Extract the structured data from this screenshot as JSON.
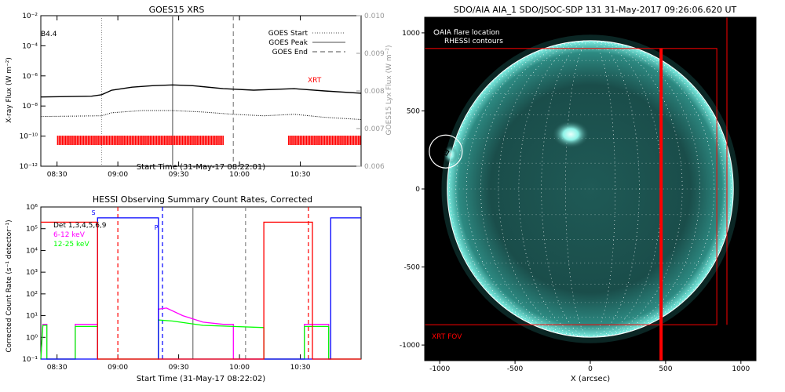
{
  "chart_data": [
    {
      "type": "line",
      "title": "GOES15 XRS",
      "xlabel": "Start Time (31-May-17 08:22:01)",
      "ylabel": "X-ray Flux (W m⁻²)",
      "ylabel_right": "GOES15 Lyx Flux (W m⁻²)",
      "class_label": "B4.4",
      "x_unit": "minutes after 08:22:01",
      "xlim": [
        0,
        158
      ],
      "ylim_log": [
        -12,
        -2
      ],
      "ylim_right": [
        0.006,
        0.01
      ],
      "x_tick_labels": [
        "08:30",
        "09:00",
        "09:30",
        "10:00",
        "10:30"
      ],
      "y_tick_labels": [
        "10⁻¹²",
        "10⁻¹⁰",
        "10⁻⁸",
        "10⁻⁶",
        "10⁻⁴",
        "10⁻²"
      ],
      "y_right_tick_labels": [
        "0.006",
        "0.007",
        "0.008",
        "0.009",
        "0.010"
      ],
      "legend": [
        {
          "label": "GOES Start",
          "style": "dotted"
        },
        {
          "label": "GOES Peak",
          "style": "solid"
        },
        {
          "label": "GOES End",
          "style": "dashed"
        }
      ],
      "event_lines": {
        "start": 30,
        "peak": 65,
        "end": 95
      },
      "series": [
        {
          "color": "#000000",
          "log_values": [
            [
              0,
              -7.4
            ],
            [
              25,
              -7.35
            ],
            [
              30,
              -7.25
            ],
            [
              35,
              -6.95
            ],
            [
              45,
              -6.75
            ],
            [
              55,
              -6.65
            ],
            [
              65,
              -6.6
            ],
            [
              75,
              -6.65
            ],
            [
              90,
              -6.85
            ],
            [
              105,
              -6.95
            ],
            [
              125,
              -6.85
            ],
            [
              140,
              -7.0
            ],
            [
              158,
              -7.15
            ]
          ]
        },
        {
          "color": "#000000",
          "style": "dotted",
          "log_values": [
            [
              0,
              -8.7
            ],
            [
              30,
              -8.65
            ],
            [
              35,
              -8.45
            ],
            [
              50,
              -8.3
            ],
            [
              65,
              -8.3
            ],
            [
              80,
              -8.4
            ],
            [
              95,
              -8.55
            ],
            [
              110,
              -8.65
            ],
            [
              125,
              -8.55
            ],
            [
              140,
              -8.75
            ],
            [
              158,
              -8.9
            ]
          ]
        }
      ],
      "xrt_label": "XRT",
      "xrt_color": "#ff0000",
      "xrt_intervals": [
        [
          8,
          90
        ],
        [
          122,
          158
        ]
      ]
    },
    {
      "type": "line",
      "title": "HESSI Observing Summary Count Rates, Corrected",
      "xlabel": "Start Time (31-May-17 08:22:02)",
      "ylabel": "Corrected Count Rate (s⁻¹ detector⁻¹)",
      "legend_header": "Det 1,3,4,5,6,9",
      "x_unit": "minutes after 08:22:02",
      "xlim": [
        0,
        158
      ],
      "ylim_log": [
        -1,
        6
      ],
      "x_tick_labels": [
        "08:30",
        "09:00",
        "09:30",
        "10:00",
        "10:30"
      ],
      "y_tick_labels": [
        "10⁻¹",
        "10⁰",
        "10¹",
        "10²",
        "10³",
        "10⁴",
        "10⁵",
        "10⁶"
      ],
      "legend": [
        {
          "label": "6-12 keV",
          "color": "#ff00ff"
        },
        {
          "label": "12-25 keV",
          "color": "#00ff00"
        }
      ],
      "flag_markers": [
        {
          "label": "S",
          "x": 25
        },
        {
          "label": "P",
          "x": 56
        }
      ],
      "series": [
        {
          "name": "6-12 keV",
          "color": "#ff00ff",
          "log_values": [
            [
              0,
              -1
            ],
            [
              1,
              0.6
            ],
            [
              3,
              0.6
            ],
            [
              3,
              -1
            ],
            [
              17,
              -1
            ],
            [
              17,
              0.6
            ],
            [
              28,
              0.6
            ],
            [
              28,
              -1
            ],
            [
              58,
              -1
            ],
            [
              58,
              1.3
            ],
            [
              62,
              1.35
            ],
            [
              70,
              1.0
            ],
            [
              80,
              0.7
            ],
            [
              90,
              0.6
            ],
            [
              95,
              0.6
            ],
            [
              95,
              -1
            ],
            [
              130,
              -1
            ],
            [
              130,
              0.6
            ],
            [
              142,
              0.6
            ],
            [
              142,
              -1
            ],
            [
              158,
              -1
            ]
          ]
        },
        {
          "name": "12-25 keV",
          "color": "#00ff00",
          "log_values": [
            [
              0,
              -1
            ],
            [
              1,
              0.55
            ],
            [
              3,
              0.55
            ],
            [
              3,
              -1
            ],
            [
              17,
              -1
            ],
            [
              17,
              0.5
            ],
            [
              28,
              0.5
            ],
            [
              28,
              -1
            ],
            [
              58,
              -1
            ],
            [
              58,
              0.8
            ],
            [
              65,
              0.75
            ],
            [
              80,
              0.55
            ],
            [
              95,
              0.5
            ],
            [
              110,
              0.45
            ],
            [
              110,
              -1
            ],
            [
              130,
              -1
            ],
            [
              130,
              0.5
            ],
            [
              142,
              0.5
            ],
            [
              142,
              -1
            ],
            [
              158,
              -1
            ]
          ]
        },
        {
          "color": "#0000ff",
          "log_values": [
            [
              0,
              -1
            ],
            [
              28,
              -1
            ],
            [
              28,
              5.5
            ],
            [
              58,
              5.5
            ],
            [
              58,
              -1
            ],
            [
              143,
              -1
            ],
            [
              143,
              5.5
            ],
            [
              158,
              5.5
            ]
          ]
        },
        {
          "color": "#ff0000",
          "log_values": [
            [
              0,
              5.3
            ],
            [
              28,
              5.3
            ],
            [
              28,
              -1
            ],
            [
              110,
              -1
            ],
            [
              110,
              5.3
            ],
            [
              134,
              5.3
            ],
            [
              134,
              -1
            ],
            [
              158,
              -1
            ]
          ]
        }
      ],
      "dashed_lines": [
        {
          "color": "#ff0000",
          "x": 38
        },
        {
          "color": "#0000ff",
          "x": 60
        },
        {
          "color": "#ff0000",
          "x": 132
        },
        {
          "color": "#888888",
          "x": 101
        }
      ],
      "solid_lines": [
        {
          "color": "#888888",
          "x": 75
        }
      ]
    },
    {
      "type": "heatmap",
      "title": "SDO/AIA AIA_1 SDO/JSOC-SDP 131 31-May-2017 09:26:06.620 UT",
      "xlabel": "X (arcsec)",
      "xlim": [
        -1100,
        1100
      ],
      "ylim": [
        -1100,
        1100
      ],
      "x_tick_labels": [
        "-1000",
        "-500",
        "0",
        "500",
        "1000"
      ],
      "y_tick_labels": [
        "-1000",
        "-500",
        "0",
        "500",
        "1000"
      ],
      "legend": [
        "AIA flare location",
        "RHESSI contours"
      ],
      "xrt_fov_label": "XRT FOV",
      "xrt_fov": [
        -1100,
        -870,
        840,
        900
      ],
      "limb_radius": 950,
      "flare_location": [
        -960,
        240
      ],
      "active_region": [
        -130,
        350
      ],
      "vertical_line_x": 470
    }
  ]
}
